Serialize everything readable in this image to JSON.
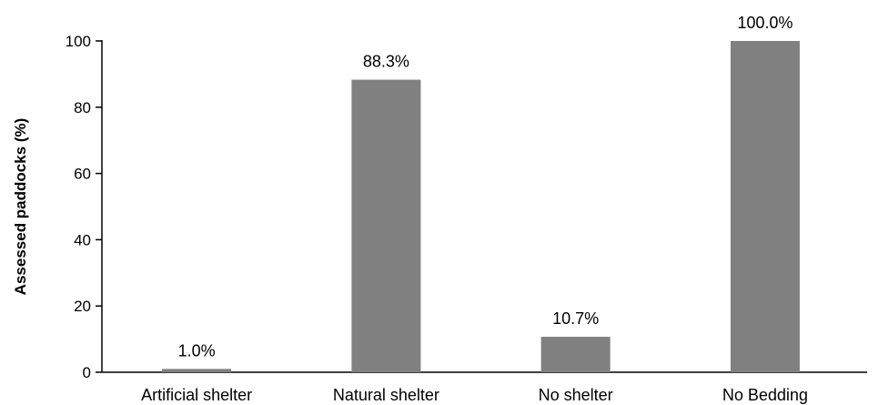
{
  "chart_data": {
    "type": "bar",
    "categories": [
      "Artificial shelter",
      "Natural shelter",
      "No shelter",
      "No Bedding"
    ],
    "values": [
      1.0,
      88.3,
      10.7,
      100.0
    ],
    "data_labels": [
      "1.0%",
      "88.3%",
      "10.7%",
      "100.0%"
    ],
    "title": "",
    "xlabel": "",
    "ylabel": "Assessed paddocks (%)",
    "ylim": [
      0,
      100
    ],
    "yticks": [
      0,
      20,
      40,
      60,
      80,
      100
    ],
    "grid": false,
    "legend": "none",
    "bar_color": "#808080"
  }
}
